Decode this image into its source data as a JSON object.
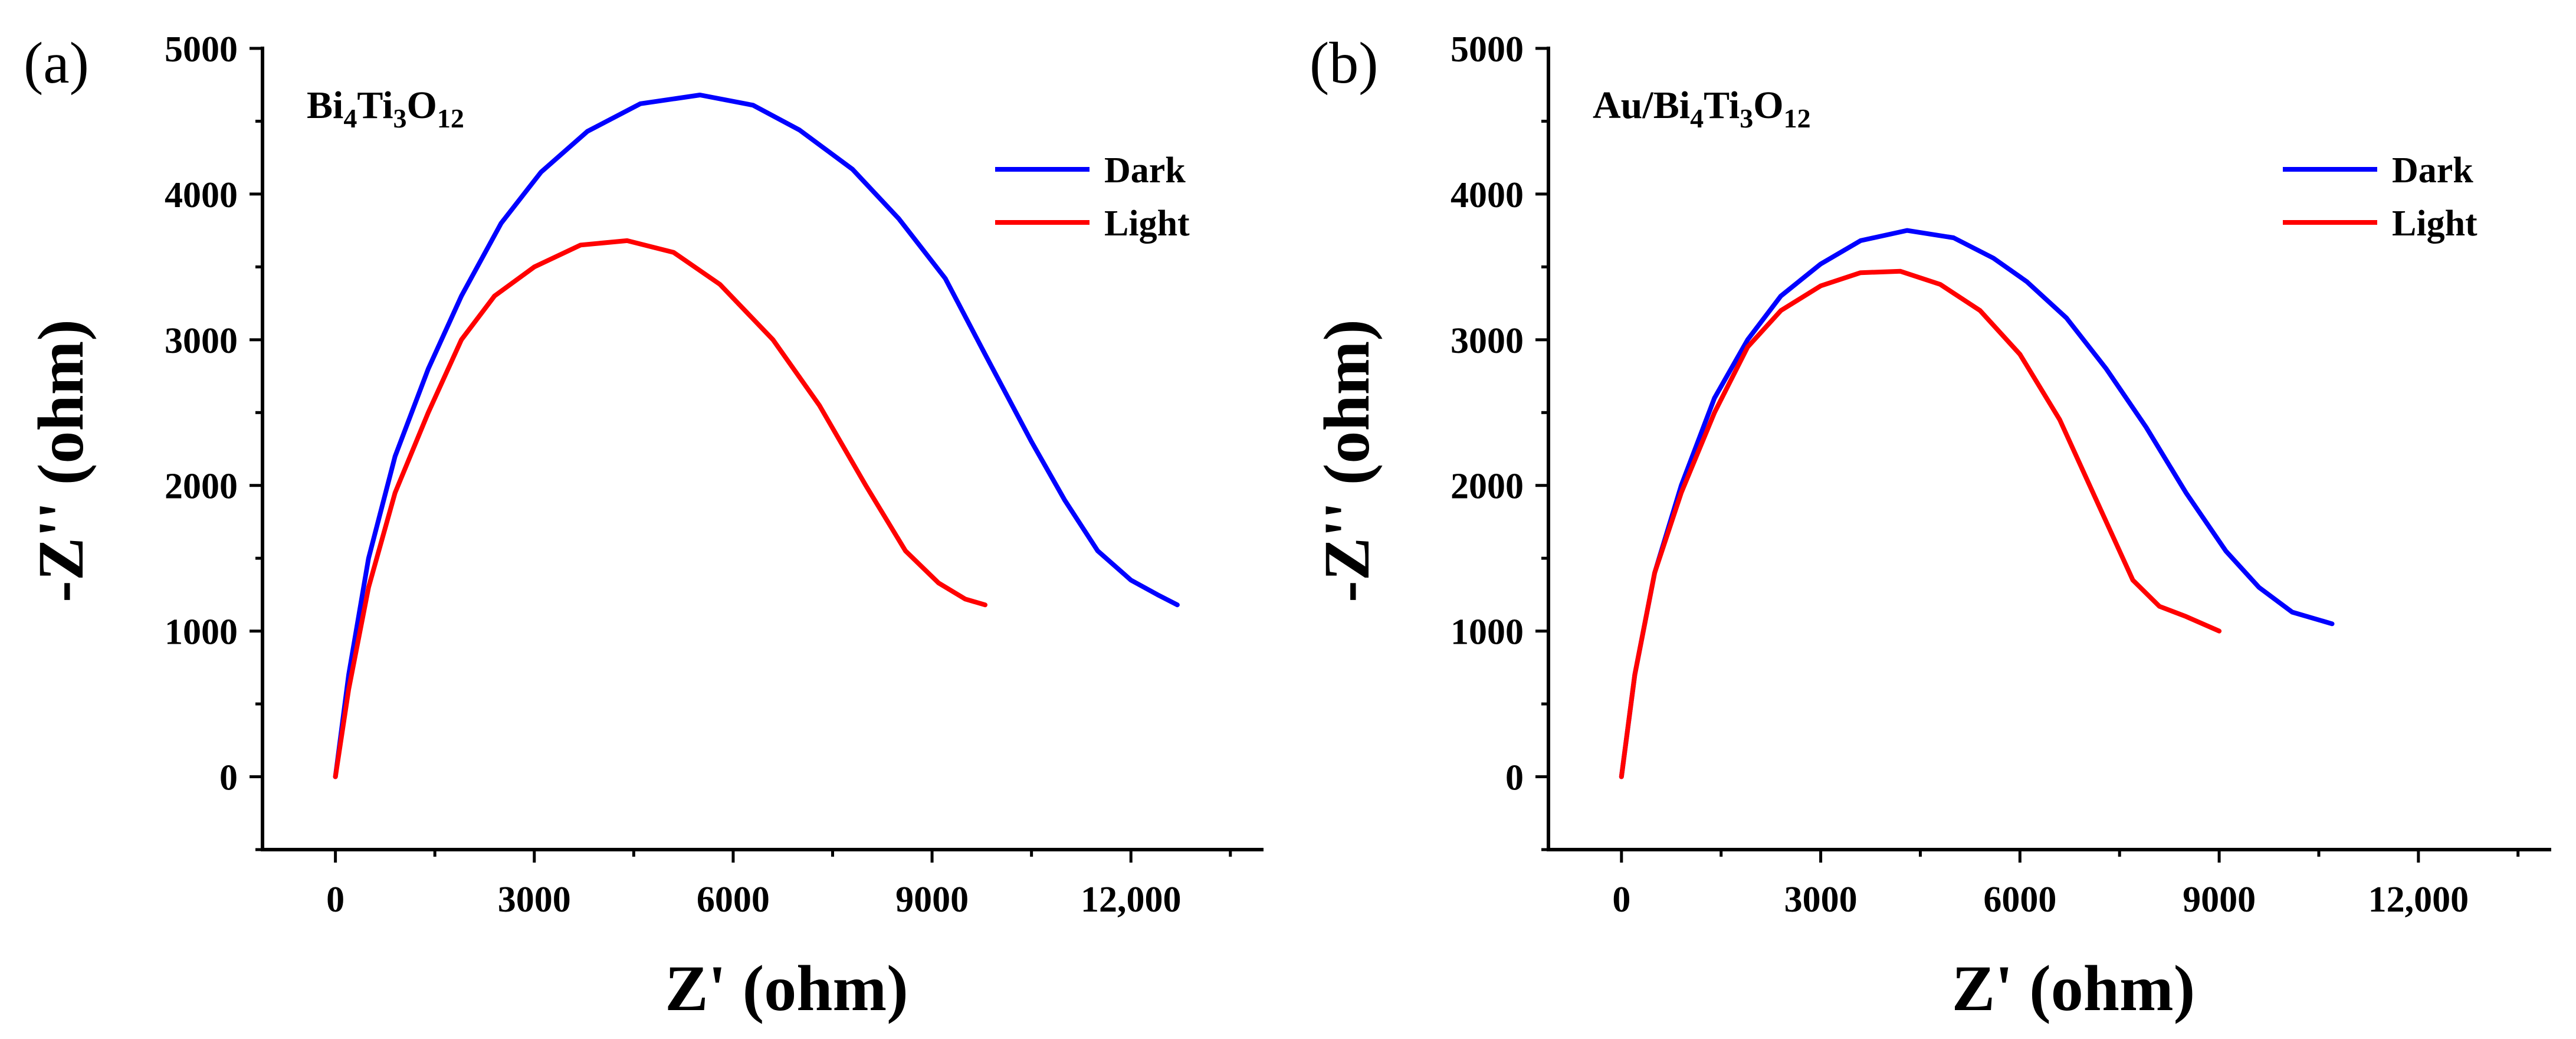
{
  "chart_data": [
    {
      "type": "line",
      "panel_label": "(a)",
      "inset_label": {
        "parts": [
          [
            "Bi",
            ""
          ],
          [
            "4",
            "sub"
          ],
          [
            "Ti",
            ""
          ],
          [
            "3",
            "sub"
          ],
          [
            "O",
            ""
          ],
          [
            "12",
            "sub"
          ]
        ]
      },
      "xlabel": "Z' (ohm)",
      "ylabel": "-Z'' (ohm)",
      "xlim": [
        -1100,
        14000
      ],
      "ylim": [
        -500,
        5000
      ],
      "xticks": [
        0,
        3000,
        6000,
        9000,
        12000
      ],
      "xtick_labels": [
        "0",
        "3000",
        "6000",
        "9000",
        "12,000"
      ],
      "yticks": [
        0,
        1000,
        2000,
        3000,
        4000,
        5000
      ],
      "ytick_labels": [
        "0",
        "1000",
        "2000",
        "3000",
        "4000",
        "5000"
      ],
      "legend_position": "top-right",
      "series": [
        {
          "name": "Dark",
          "color": "#0000ff",
          "x": [
            0,
            200,
            500,
            900,
            1400,
            1900,
            2500,
            3100,
            3800,
            4600,
            5500,
            6300,
            7000,
            7800,
            8500,
            9200,
            9800,
            10500,
            11000,
            11500,
            12000,
            12400,
            12700
          ],
          "y": [
            0,
            700,
            1500,
            2200,
            2800,
            3300,
            3800,
            4150,
            4430,
            4620,
            4680,
            4610,
            4440,
            4170,
            3830,
            3420,
            2900,
            2300,
            1900,
            1550,
            1350,
            1250,
            1180
          ]
        },
        {
          "name": "Light",
          "color": "#ff0000",
          "x": [
            0,
            200,
            500,
            900,
            1400,
            1900,
            2400,
            3000,
            3700,
            4400,
            5100,
            5800,
            6600,
            7300,
            8000,
            8600,
            9100,
            9500,
            9800
          ],
          "y": [
            0,
            600,
            1300,
            1950,
            2500,
            3000,
            3300,
            3500,
            3650,
            3680,
            3600,
            3380,
            3000,
            2550,
            2000,
            1550,
            1330,
            1220,
            1180
          ]
        }
      ]
    },
    {
      "type": "line",
      "panel_label": "(b)",
      "inset_label": {
        "parts": [
          [
            "Au/Bi",
            ""
          ],
          [
            "4",
            "sub"
          ],
          [
            "Ti",
            ""
          ],
          [
            "3",
            "sub"
          ],
          [
            "O",
            ""
          ],
          [
            "12",
            "sub"
          ]
        ]
      },
      "xlabel": "Z' (ohm)",
      "ylabel": "-Z'' (ohm)",
      "xlim": [
        -1100,
        14000
      ],
      "ylim": [
        -500,
        5000
      ],
      "xticks": [
        0,
        3000,
        6000,
        9000,
        12000
      ],
      "xtick_labels": [
        "0",
        "3000",
        "6000",
        "9000",
        "12,000"
      ],
      "yticks": [
        0,
        1000,
        2000,
        3000,
        4000,
        5000
      ],
      "ytick_labels": [
        "0",
        "1000",
        "2000",
        "3000",
        "4000",
        "5000"
      ],
      "legend_position": "top-right",
      "series": [
        {
          "name": "Dark",
          "color": "#0000ff",
          "x": [
            0,
            200,
            500,
            900,
            1400,
            1900,
            2400,
            3000,
            3600,
            4300,
            5000,
            5600,
            6100,
            6700,
            7300,
            7900,
            8500,
            9100,
            9600,
            10100,
            10700
          ],
          "y": [
            0,
            700,
            1400,
            2000,
            2600,
            3000,
            3300,
            3520,
            3680,
            3750,
            3700,
            3560,
            3400,
            3150,
            2800,
            2400,
            1950,
            1550,
            1300,
            1130,
            1050
          ]
        },
        {
          "name": "Light",
          "color": "#ff0000",
          "x": [
            0,
            200,
            500,
            900,
            1400,
            1900,
            2400,
            3000,
            3600,
            4200,
            4800,
            5400,
            6000,
            6600,
            7200,
            7700,
            8100,
            8500,
            9000
          ],
          "y": [
            0,
            700,
            1400,
            1950,
            2500,
            2950,
            3200,
            3370,
            3460,
            3470,
            3380,
            3200,
            2900,
            2450,
            1850,
            1350,
            1170,
            1100,
            1000
          ]
        }
      ]
    }
  ]
}
